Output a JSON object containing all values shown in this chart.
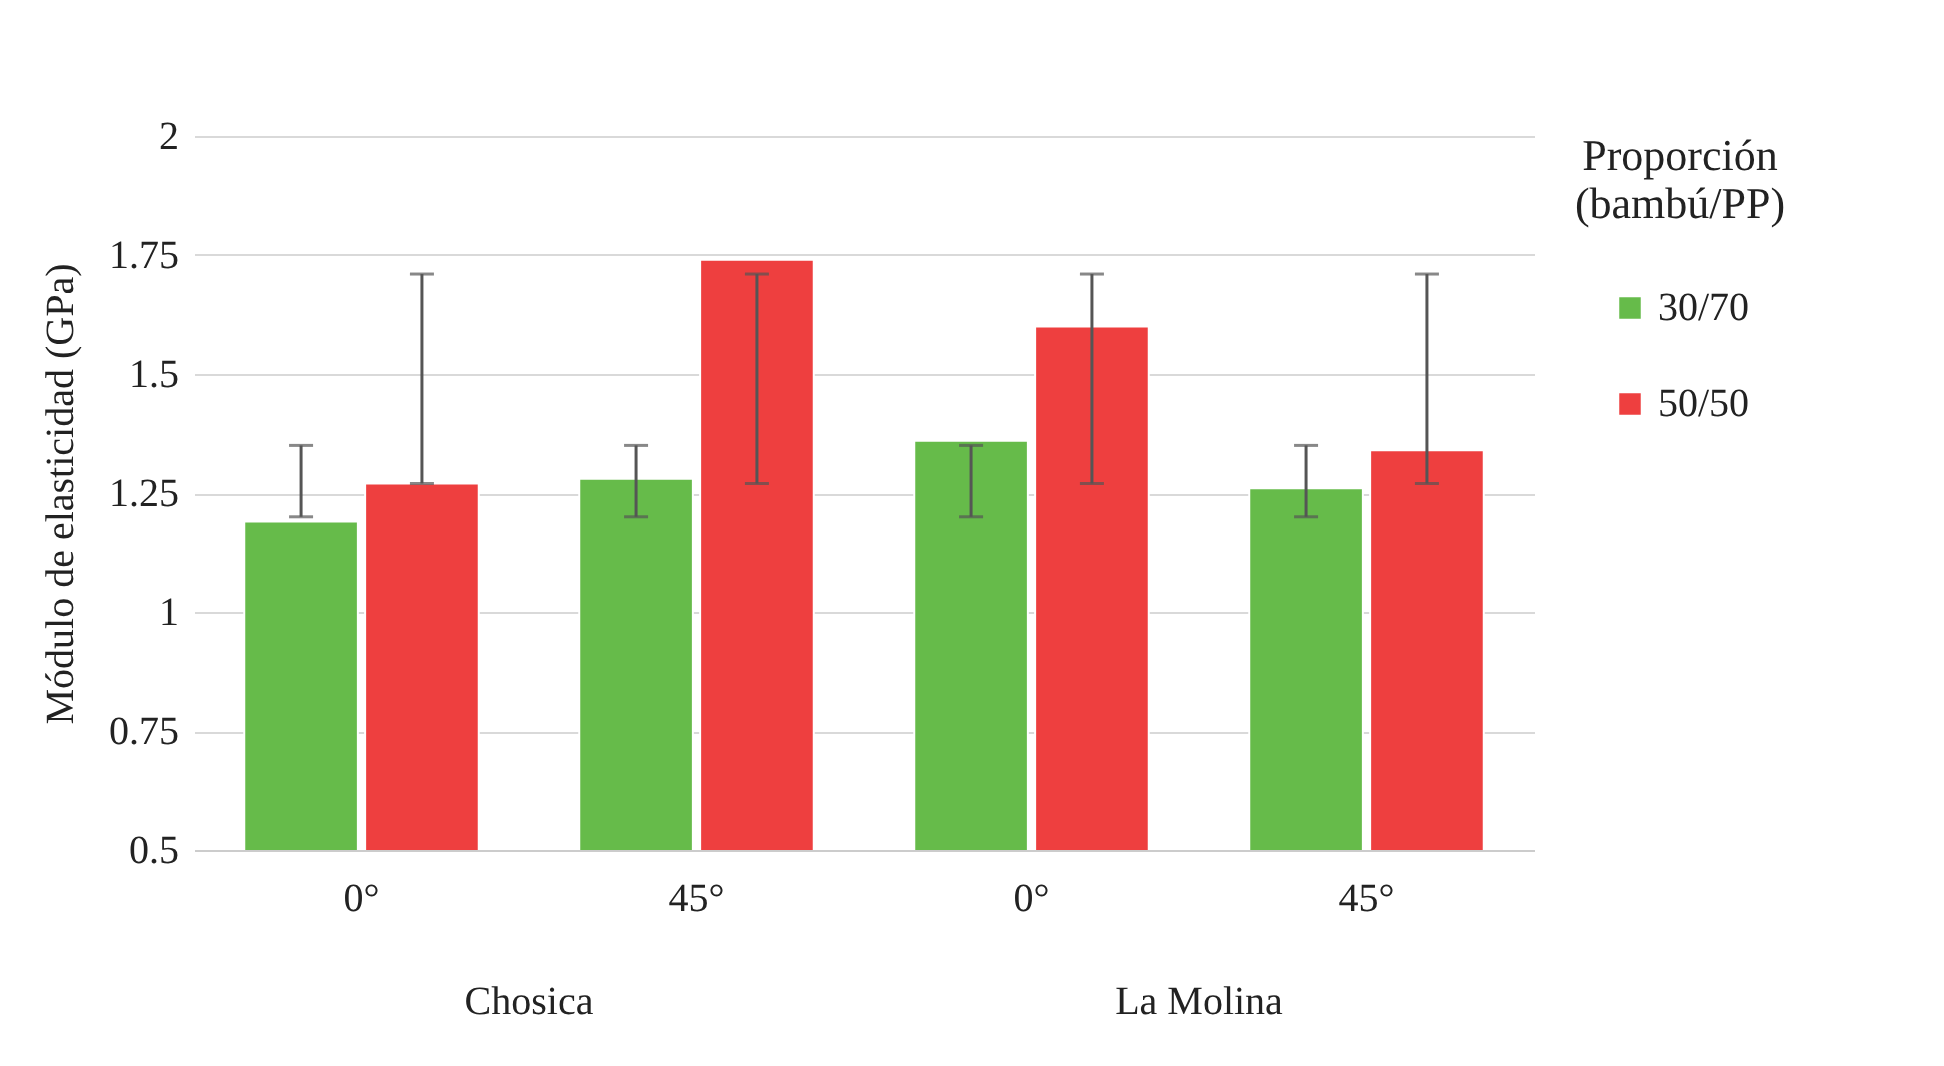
{
  "chart_data": {
    "type": "bar",
    "ylabel": "Módulo de elasticidad (GPa)",
    "legend_title": "Proporción (bambú/PP)",
    "categories": [
      "0°",
      "45°",
      "0°",
      "45°"
    ],
    "series": [
      {
        "name": "30/70",
        "color": "#66bb4a",
        "values": [
          1.19,
          1.28,
          1.36,
          1.26
        ],
        "errors": [
          [
            1.2,
            1.35
          ],
          [
            1.2,
            1.35
          ],
          [
            1.2,
            1.35
          ],
          [
            1.2,
            1.35
          ]
        ]
      },
      {
        "name": "50/50",
        "color": "#ee3f3f",
        "values": [
          1.27,
          1.74,
          1.6,
          1.34
        ],
        "errors": [
          [
            1.27,
            1.71
          ],
          [
            1.27,
            1.71
          ],
          [
            1.27,
            1.71
          ],
          [
            1.27,
            1.71
          ]
        ]
      }
    ],
    "annotations": [
      "Chosica",
      "La Molina"
    ],
    "ylim": [
      0.5,
      2
    ],
    "yticks": [
      0.5,
      0.75,
      1,
      1.25,
      1.5,
      1.75,
      2
    ],
    "grid": "y",
    "legend": "right"
  }
}
